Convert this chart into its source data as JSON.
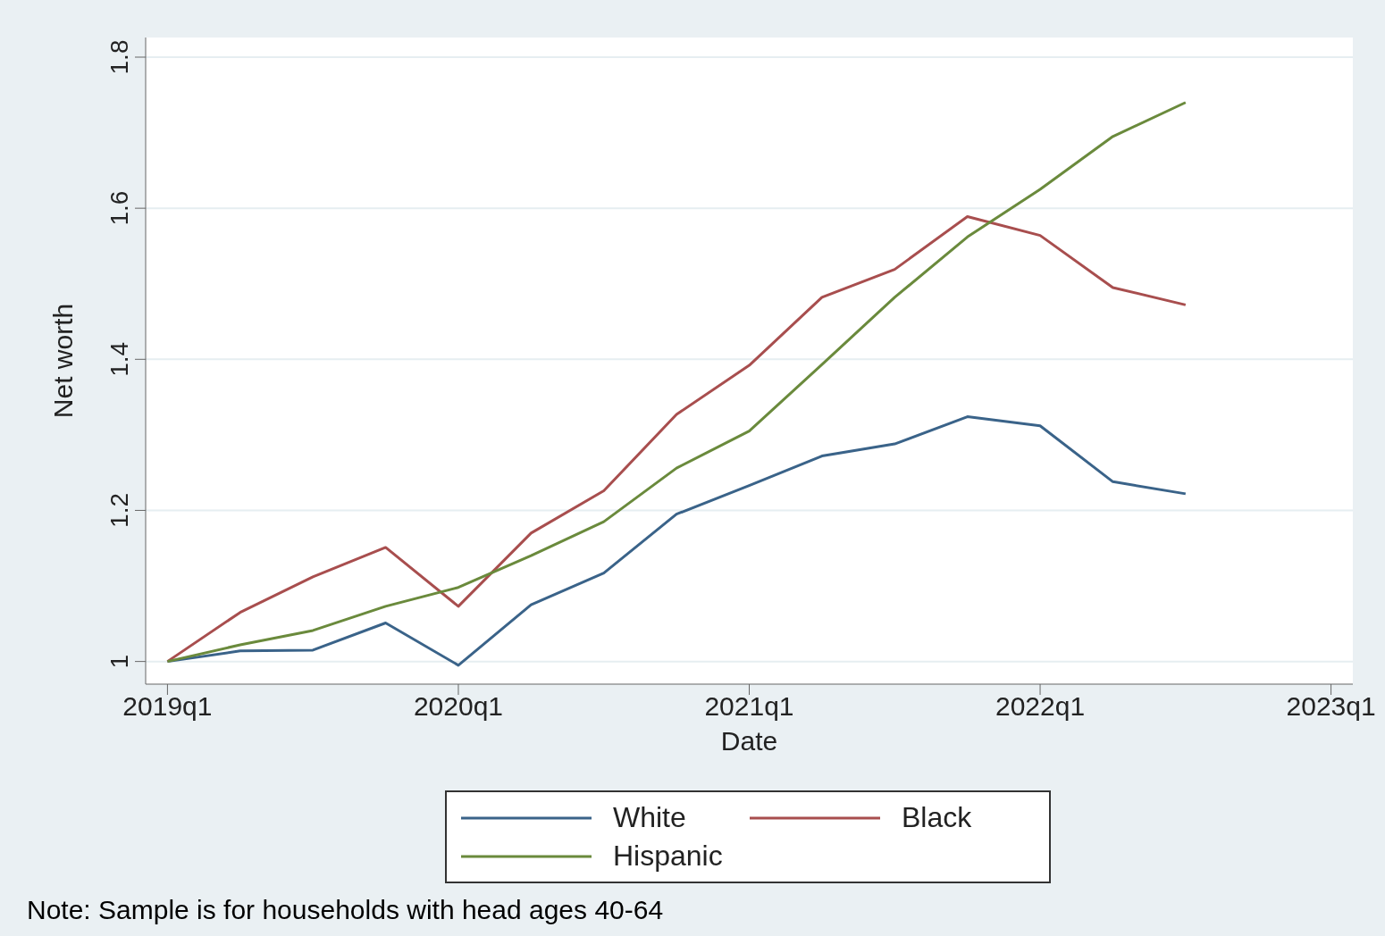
{
  "chart_data": {
    "type": "line",
    "xlabel": "Date",
    "ylabel": "Net worth",
    "categories": [
      "2019q1",
      null,
      null,
      null,
      "2020q1",
      null,
      null,
      null,
      "2021q1",
      null,
      null,
      null,
      "2022q1",
      null,
      null,
      null,
      "2023q1"
    ],
    "series": [
      {
        "name": "White",
        "color": "#3a6389",
        "values": [
          1.0,
          1.014,
          1.015,
          1.051,
          0.995,
          1.075,
          1.117,
          1.195,
          1.233,
          1.272,
          1.288,
          1.324,
          1.312,
          1.238,
          1.222,
          null,
          null
        ]
      },
      {
        "name": "Black",
        "color": "#a84e4e",
        "values": [
          1.0,
          1.065,
          1.112,
          1.151,
          1.073,
          1.17,
          1.226,
          1.327,
          1.392,
          1.482,
          1.519,
          1.589,
          1.564,
          1.495,
          1.472,
          null,
          null
        ]
      },
      {
        "name": "Hispanic",
        "color": "#6a8a3c",
        "values": [
          1.0,
          1.022,
          1.041,
          1.073,
          1.098,
          1.14,
          1.185,
          1.256,
          1.305,
          1.393,
          1.482,
          1.562,
          1.625,
          1.695,
          1.74,
          null,
          null
        ]
      }
    ],
    "ylim": [
      0.97,
      1.826
    ],
    "yticks": [
      {
        "value": 1,
        "label": "1"
      },
      {
        "value": 1.2,
        "label": "1.2"
      },
      {
        "value": 1.4,
        "label": "1.4"
      },
      {
        "value": 1.6,
        "label": "1.6"
      },
      {
        "value": 1.8,
        "label": "1.8"
      }
    ],
    "grid": "y",
    "legend": "bottom",
    "marker": "none",
    "line_style": "solid",
    "annotations": [
      "Note: Sample is for households with head ages 40-64"
    ]
  }
}
